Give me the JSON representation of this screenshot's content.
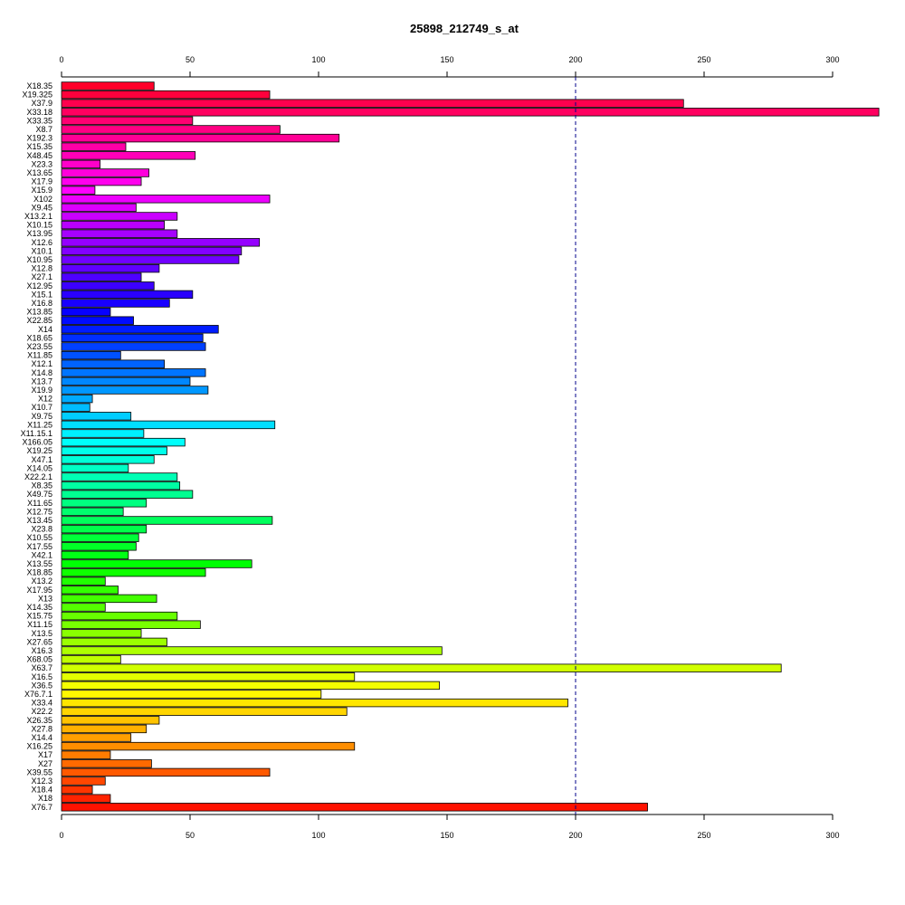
{
  "chart_data": {
    "type": "bar",
    "orientation": "horizontal",
    "title": "25898_212749_s_at",
    "xlim": [
      0,
      300
    ],
    "xticks": [
      0,
      50,
      100,
      150,
      200,
      250,
      300
    ],
    "axes": [
      "top",
      "bottom"
    ],
    "reference_line": {
      "value": 200,
      "style": "dashed",
      "color": "#00008b"
    },
    "categories": [
      "X18.35",
      "X19.325",
      "X37.9",
      "X33.18",
      "X33.35",
      "X8.7",
      "X192.3",
      "X15.35",
      "X48.45",
      "X23.3",
      "X13.65",
      "X17.9",
      "X15.9",
      "X102",
      "X9.45",
      "X13.2.1",
      "X10.15",
      "X13.95",
      "X12.6",
      "X10.1",
      "X10.95",
      "X12.8",
      "X27.1",
      "X12.95",
      "X15.1",
      "X16.8",
      "X13.85",
      "X22.85",
      "X14",
      "X18.65",
      "X23.55",
      "X11.85",
      "X12.1",
      "X14.8",
      "X13.7",
      "X19.9",
      "X12",
      "X10.7",
      "X9.75",
      "X11.25",
      "X11.15.1",
      "X166.05",
      "X19.25",
      "X47.1",
      "X14.05",
      "X22.2.1",
      "X8.35",
      "X49.75",
      "X11.65",
      "X12.75",
      "X13.45",
      "X23.8",
      "X10.55",
      "X17.55",
      "X42.1",
      "X13.55",
      "X18.85",
      "X13.2",
      "X17.95",
      "X13",
      "X14.35",
      "X15.75",
      "X11.15",
      "X13.5",
      "X27.65",
      "X16.3",
      "X68.05",
      "X63.7",
      "X16.5",
      "X36.5",
      "X76.7.1",
      "X33.4",
      "X22.2",
      "X26.35",
      "X27.8",
      "X14.4",
      "X16.25",
      "X17",
      "X27",
      "X39.55",
      "X12.3",
      "X18.4",
      "X18",
      "X76.7"
    ],
    "values": [
      36,
      81,
      242,
      318,
      51,
      85,
      108,
      25,
      52,
      15,
      34,
      31,
      13,
      81,
      29,
      45,
      40,
      45,
      77,
      70,
      69,
      38,
      31,
      36,
      51,
      42,
      19,
      28,
      61,
      55,
      56,
      23,
      40,
      56,
      50,
      57,
      12,
      11,
      27,
      83,
      32,
      48,
      41,
      36,
      26,
      45,
      46,
      51,
      33,
      24,
      82,
      33,
      30,
      29,
      26,
      74,
      56,
      17,
      22,
      37,
      17,
      45,
      54,
      31,
      41,
      148,
      23,
      280,
      114,
      147,
      101,
      197,
      111,
      38,
      33,
      27,
      114,
      19,
      35,
      81,
      17,
      12,
      19,
      228
    ]
  }
}
